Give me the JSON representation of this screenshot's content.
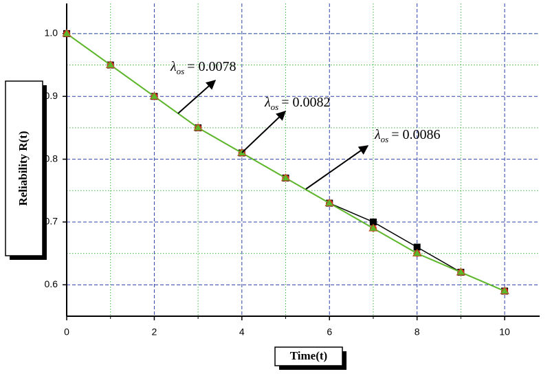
{
  "chart_data": {
    "type": "line",
    "x": [
      0,
      1,
      2,
      3,
      4,
      5,
      6,
      7,
      8,
      9,
      10
    ],
    "series": [
      {
        "color": "#000000",
        "marker": "square",
        "values": [
          1.0,
          0.95,
          0.9,
          0.85,
          0.81,
          0.77,
          0.73,
          0.7,
          0.66,
          0.62,
          0.59
        ]
      },
      {
        "color": "#e03020",
        "marker": "circle",
        "values": [
          1.0,
          0.95,
          0.9,
          0.85,
          0.81,
          0.77,
          0.73,
          0.69,
          0.65,
          0.62,
          0.59
        ]
      },
      {
        "color": "#5cb82a",
        "marker": "triangle",
        "values": [
          1.0,
          0.95,
          0.9,
          0.85,
          0.81,
          0.77,
          0.73,
          0.69,
          0.65,
          0.62,
          0.59
        ]
      }
    ],
    "xlabel": "Time(t)",
    "ylabel": "Reliability R(t)",
    "xlim": [
      0,
      10.8
    ],
    "ylim": [
      0.55,
      1.048
    ],
    "xticks": [
      0,
      2,
      4,
      6,
      8,
      10
    ],
    "yticks": [
      0.6,
      0.7,
      0.8,
      0.9,
      {
        "value": 1,
        "label": "1.0"
      }
    ],
    "minor_xticks": [
      1,
      3,
      5,
      7,
      9
    ],
    "minor_yticks": [
      0.65,
      0.75,
      0.85,
      0.95,
      1.0
    ],
    "grid": true,
    "annotations": [
      {
        "symbol": "λ",
        "subscript": "os",
        "text": "= 0.0078"
      },
      {
        "symbol": "λ",
        "subscript": "os",
        "text": "= 0.0082"
      },
      {
        "symbol": "λ",
        "subscript": "os",
        "text": "= 0.0086"
      }
    ]
  }
}
